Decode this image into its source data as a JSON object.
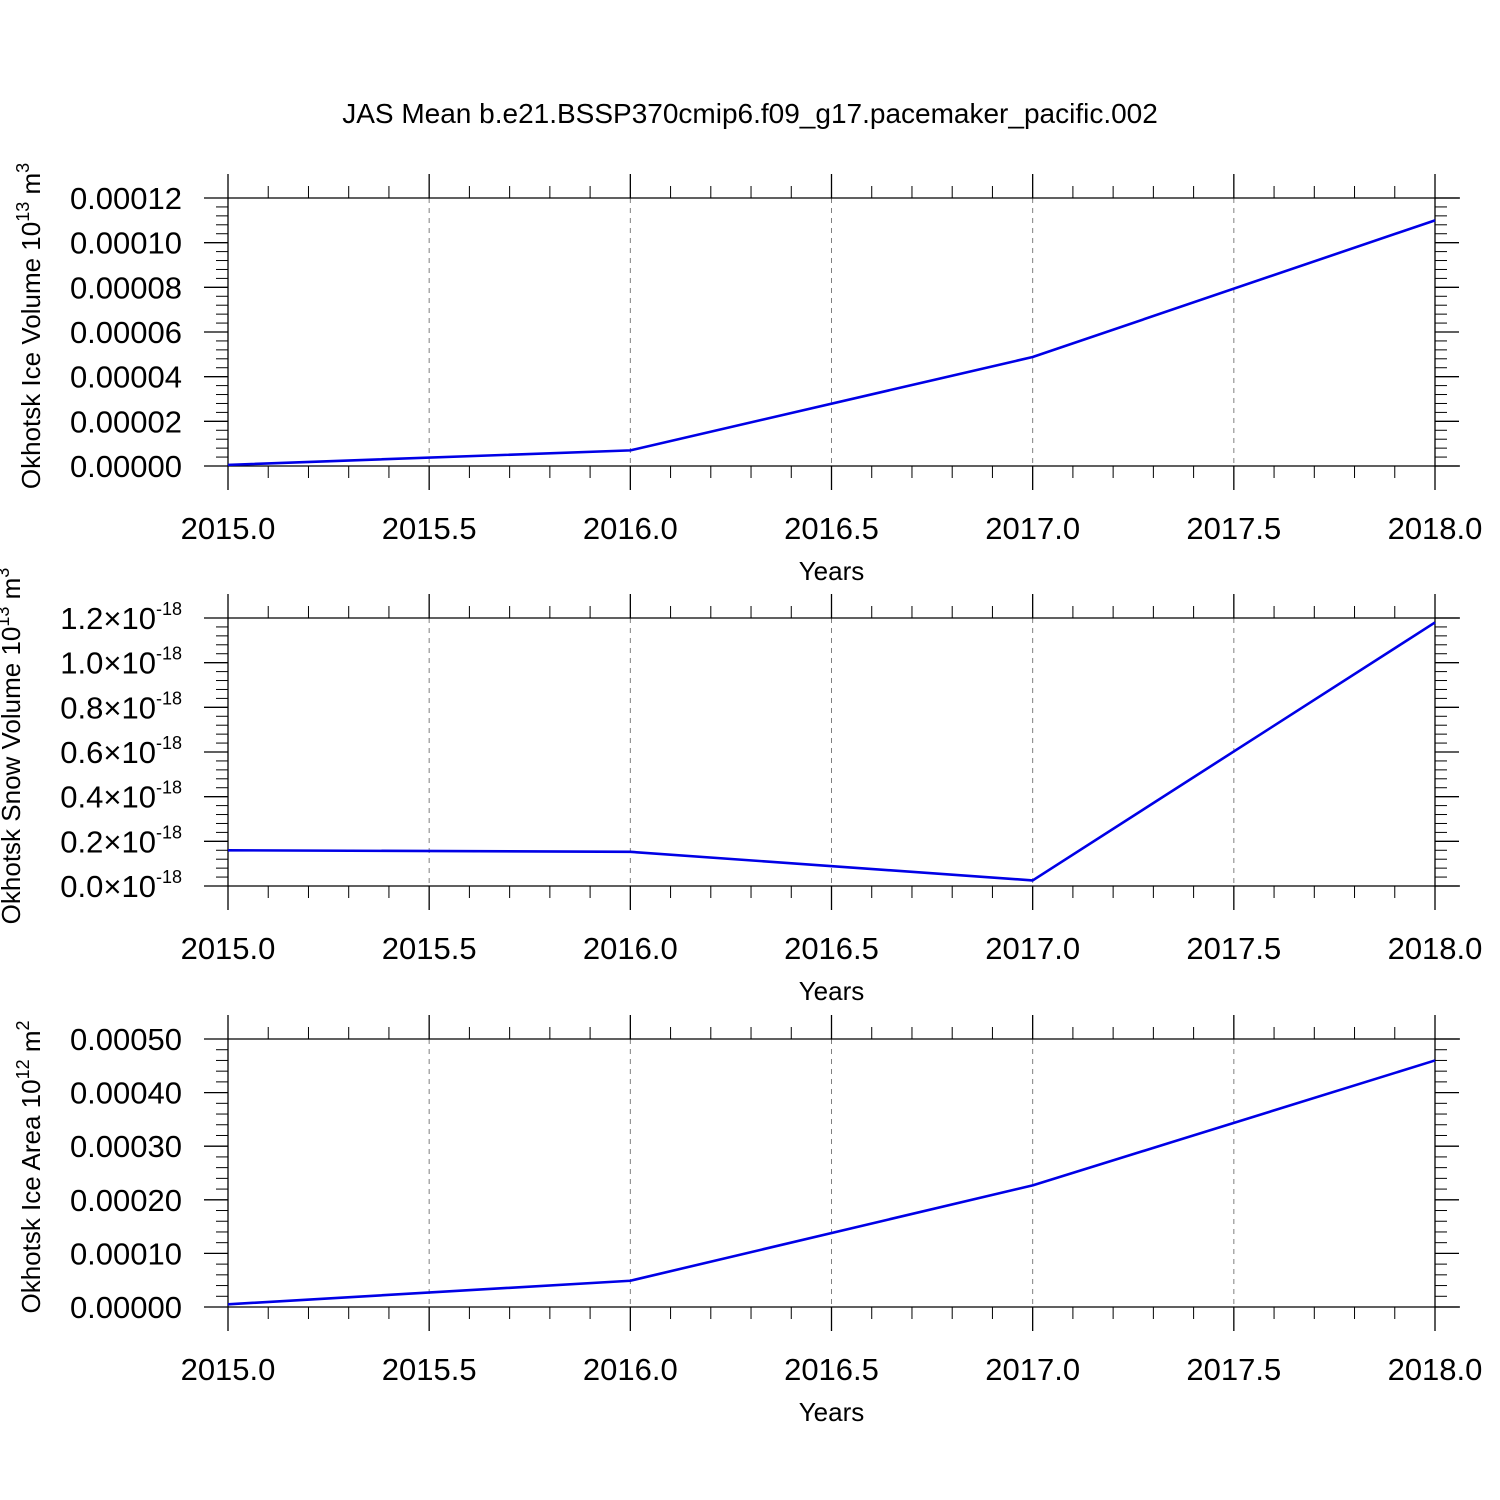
{
  "figure_title": "JAS Mean b.e21.BSSP370cmip6.f09_g17.pacemaker_pacific.002",
  "colors": {
    "series_line": "#0000e6",
    "axes": "#000000",
    "grid": "#7f7f7f"
  },
  "chart_data": [
    {
      "type": "line",
      "xlabel": "Years",
      "ylabel": "Okhotsk Ice Volume 10",
      "ylabel_exponent": "13",
      "ylabel_unit": " m",
      "ylabel_unit_exponent": "3",
      "xlim": [
        2015.0,
        2018.0
      ],
      "ylim": [
        0.0,
        0.00012
      ],
      "x_ticks": [
        2015.0,
        2015.5,
        2016.0,
        2016.5,
        2017.0,
        2017.5,
        2018.0
      ],
      "x_tick_labels": [
        "2015.0",
        "2015.5",
        "2016.0",
        "2016.5",
        "2017.0",
        "2017.5",
        "2018.0"
      ],
      "y_ticks": [
        0.0,
        2e-05,
        4e-05,
        6e-05,
        8e-05,
        0.0001,
        0.00012
      ],
      "y_tick_labels": [
        "0.00000",
        "0.00002",
        "0.00004",
        "0.00006",
        "0.00008",
        "0.00010",
        "0.00012"
      ],
      "grid": "vertical dashed",
      "series": [
        {
          "x": [
            2015,
            2016,
            2017,
            2018
          ],
          "values": [
            5e-07,
            7e-06,
            4.88e-05,
            0.00011
          ]
        }
      ]
    },
    {
      "type": "line",
      "xlabel": "Years",
      "ylabel": "Okhotsk Snow Volume 10",
      "ylabel_exponent": "13",
      "ylabel_unit": " m",
      "ylabel_unit_exponent": "3",
      "xlim": [
        2015.0,
        2018.0
      ],
      "ylim": [
        0.0,
        1.2e-18
      ],
      "x_ticks": [
        2015.0,
        2015.5,
        2016.0,
        2016.5,
        2017.0,
        2017.5,
        2018.0
      ],
      "x_tick_labels": [
        "2015.0",
        "2015.5",
        "2016.0",
        "2016.5",
        "2017.0",
        "2017.5",
        "2018.0"
      ],
      "y_ticks": [
        0.0,
        2e-19,
        4e-19,
        6e-19,
        8e-19,
        1e-18,
        1.2e-18
      ],
      "y_tick_labels": [
        "0.0",
        "0.2",
        "0.4",
        "0.6",
        "0.8",
        "1.0",
        "1.2"
      ],
      "y_tick_multiplier": "×10",
      "y_tick_exponent": "-18",
      "grid": "vertical dashed",
      "series": [
        {
          "x": [
            2015,
            2016,
            2017,
            2018
          ],
          "values": [
            1.6e-19,
            1.53e-19,
            2.5e-20,
            1.18e-18
          ]
        }
      ]
    },
    {
      "type": "line",
      "xlabel": "Years",
      "ylabel": "Okhotsk Ice Area 10",
      "ylabel_exponent": "12",
      "ylabel_unit": " m",
      "ylabel_unit_exponent": "2",
      "xlim": [
        2015.0,
        2018.0
      ],
      "ylim": [
        0.0,
        0.0005
      ],
      "x_ticks": [
        2015.0,
        2015.5,
        2016.0,
        2016.5,
        2017.0,
        2017.5,
        2018.0
      ],
      "x_tick_labels": [
        "2015.0",
        "2015.5",
        "2016.0",
        "2016.5",
        "2017.0",
        "2017.5",
        "2018.0"
      ],
      "y_ticks": [
        0.0,
        0.0001,
        0.0002,
        0.0003,
        0.0004,
        0.0005
      ],
      "y_tick_labels": [
        "0.00000",
        "0.00010",
        "0.00020",
        "0.00030",
        "0.00040",
        "0.00050"
      ],
      "grid": "vertical dashed",
      "series": [
        {
          "x": [
            2015,
            2016,
            2017,
            2018
          ],
          "values": [
            5e-06,
            4.9e-05,
            0.000227,
            0.00046
          ]
        }
      ]
    }
  ]
}
